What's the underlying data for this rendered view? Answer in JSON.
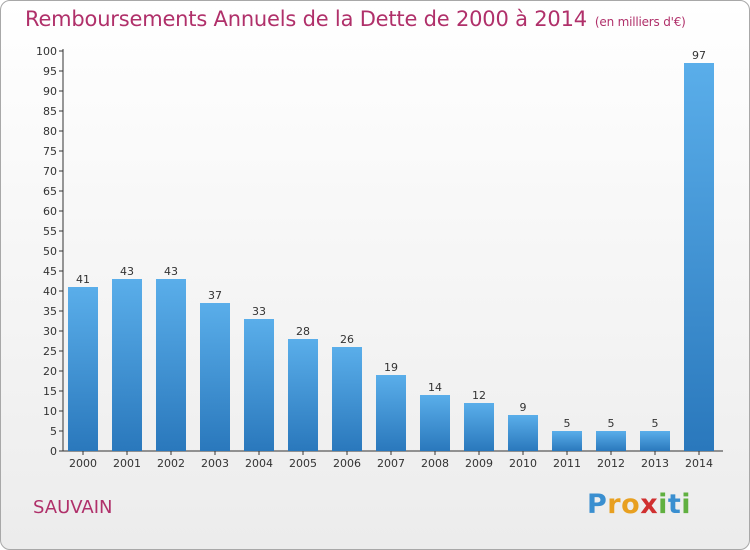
{
  "title": "Remboursements Annuels de la Dette de 2000 à 2014",
  "subtitle": "(en milliers d'€)",
  "commune": "SAUVAIN",
  "logo": {
    "letters": [
      "P",
      "r",
      "o",
      "x",
      "i",
      "t",
      "i"
    ],
    "colors": [
      "#3a8fd0",
      "#e8a020",
      "#e8a020",
      "#d03030",
      "#60b040",
      "#3a8fd0",
      "#60b040"
    ]
  },
  "colors": {
    "title": "#b0306a",
    "bar_light": "#5aaeea",
    "bar_dark": "#2a78bc"
  },
  "chart_data": {
    "type": "bar",
    "title": "Remboursements Annuels de la Dette de 2000 à 2014",
    "xlabel": "",
    "ylabel": "",
    "categories": [
      "2000",
      "2001",
      "2002",
      "2003",
      "2004",
      "2005",
      "2006",
      "2007",
      "2008",
      "2009",
      "2010",
      "2011",
      "2012",
      "2013",
      "2014"
    ],
    "values": [
      41,
      43,
      43,
      37,
      33,
      28,
      26,
      19,
      14,
      12,
      9,
      5,
      5,
      5,
      97
    ],
    "ylim": [
      0,
      100
    ],
    "yticks": [
      0,
      5,
      10,
      15,
      20,
      25,
      30,
      35,
      40,
      45,
      50,
      55,
      60,
      65,
      70,
      75,
      80,
      85,
      90,
      95,
      100
    ],
    "grid": false,
    "data_labels": true
  }
}
